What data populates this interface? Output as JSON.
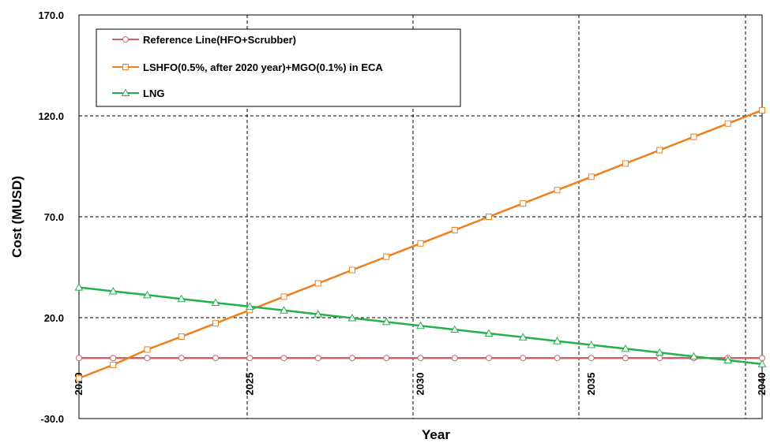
{
  "chart_data": {
    "type": "line",
    "title": "",
    "xlabel": "Year",
    "ylabel": "Cost (MUSD)",
    "xlim": [
      2020,
      2040
    ],
    "ylim": [
      -30,
      170
    ],
    "y_ticks": [
      -30,
      20,
      70,
      120,
      170
    ],
    "y_tick_labels": [
      "-30.0",
      "20.0",
      "70.0",
      "120.0",
      "170.0"
    ],
    "x_ticks": [
      2020,
      2025,
      2030,
      2035,
      2040
    ],
    "x_tick_labels": [
      "2020",
      "2025",
      "2030",
      "2035",
      "2040"
    ],
    "grid": true,
    "legend_position": "top-left",
    "baseline": 0,
    "x": [
      2020,
      2021,
      2022,
      2023,
      2024,
      2025,
      2026,
      2027,
      2028,
      2029,
      2030,
      2031,
      2032,
      2033,
      2034,
      2035,
      2036,
      2037,
      2038,
      2039,
      2040
    ],
    "series": [
      {
        "name": "Reference Line(HFO+Scrubber)",
        "color": "#d0606e",
        "marker": "circle",
        "values": [
          0,
          0,
          0,
          0,
          0,
          0,
          0,
          0,
          0,
          0,
          0,
          0,
          0,
          0,
          0,
          0,
          0,
          0,
          0,
          0,
          0
        ]
      },
      {
        "name": "LSHFO(0.5%, after 2020 year)+MGO(0.1%) in ECA",
        "color": "#f07f1d",
        "marker": "square",
        "values": [
          -10,
          -3.4,
          4.2,
          10.6,
          17.2,
          23.8,
          30.4,
          37,
          43.6,
          50.2,
          56.8,
          63.4,
          70,
          76.6,
          83.2,
          89.8,
          96.4,
          103,
          109.6,
          116.2,
          122.8
        ]
      },
      {
        "name": "LNG",
        "color": "#22b24c",
        "marker": "triangle",
        "values": [
          35,
          33.1,
          31.2,
          29.3,
          27.4,
          25.5,
          23.6,
          21.7,
          19.8,
          17.9,
          16,
          14.1,
          12.2,
          10.3,
          8.4,
          6.5,
          4.6,
          2.7,
          0.8,
          -1.1,
          -3
        ]
      }
    ]
  }
}
